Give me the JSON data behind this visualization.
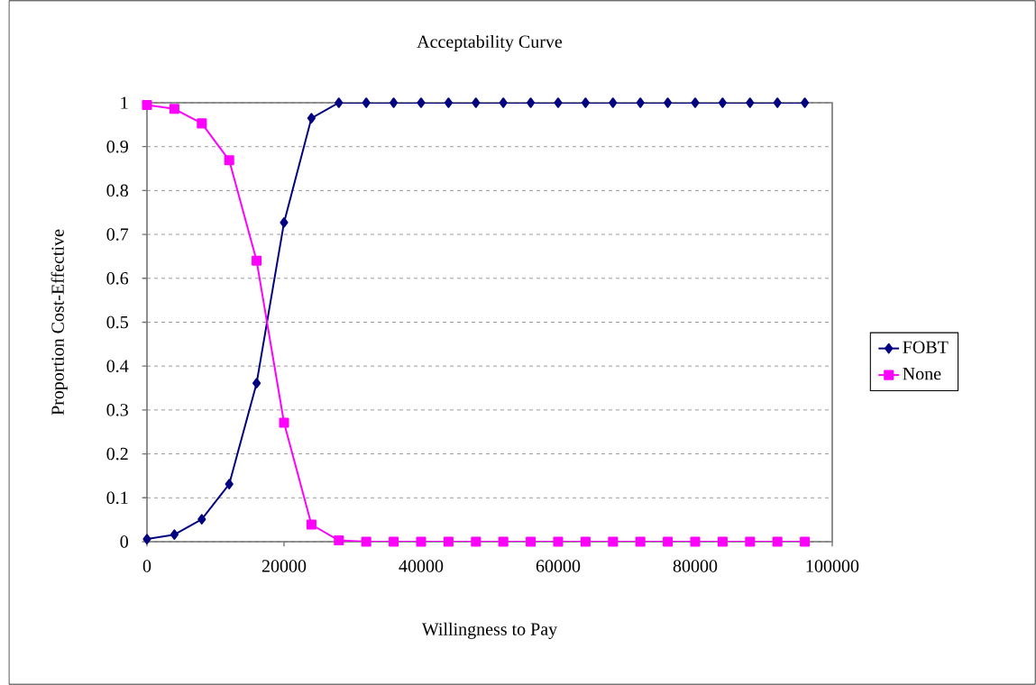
{
  "chart_data": {
    "type": "line",
    "title": "Acceptability Curve",
    "xlabel": "Willingness to Pay",
    "ylabel": "Proportion Cost-Effective",
    "x": [
      0,
      4000,
      8000,
      12000,
      16000,
      20000,
      24000,
      28000,
      32000,
      36000,
      40000,
      44000,
      48000,
      52000,
      56000,
      60000,
      64000,
      68000,
      72000,
      76000,
      80000,
      84000,
      88000,
      92000,
      96000
    ],
    "series": [
      {
        "name": "FOBT",
        "color": "#000080",
        "marker": "diamond",
        "values": [
          0.006,
          0.016,
          0.051,
          0.131,
          0.361,
          0.727,
          0.965,
          1,
          1,
          1,
          1,
          1,
          1,
          1,
          1,
          1,
          1,
          1,
          1,
          1,
          1,
          1,
          1,
          1,
          1
        ]
      },
      {
        "name": "None",
        "color": "#ff00ff",
        "marker": "square",
        "values": [
          0.995,
          0.986,
          0.953,
          0.869,
          0.64,
          0.271,
          0.039,
          0.003,
          0,
          0,
          0,
          0,
          0,
          0,
          0,
          0,
          0,
          0,
          0,
          0,
          0,
          0,
          0,
          0,
          0
        ]
      }
    ],
    "xlim": [
      0,
      100000
    ],
    "xticks": [
      0,
      20000,
      40000,
      60000,
      80000,
      100000
    ],
    "ylim": [
      0,
      1
    ],
    "yticks": [
      0,
      0.1,
      0.2,
      0.3,
      0.4,
      0.5,
      0.6,
      0.7,
      0.8,
      0.9,
      1
    ],
    "grid": "y",
    "legend": "right",
    "line_style": "solid"
  }
}
